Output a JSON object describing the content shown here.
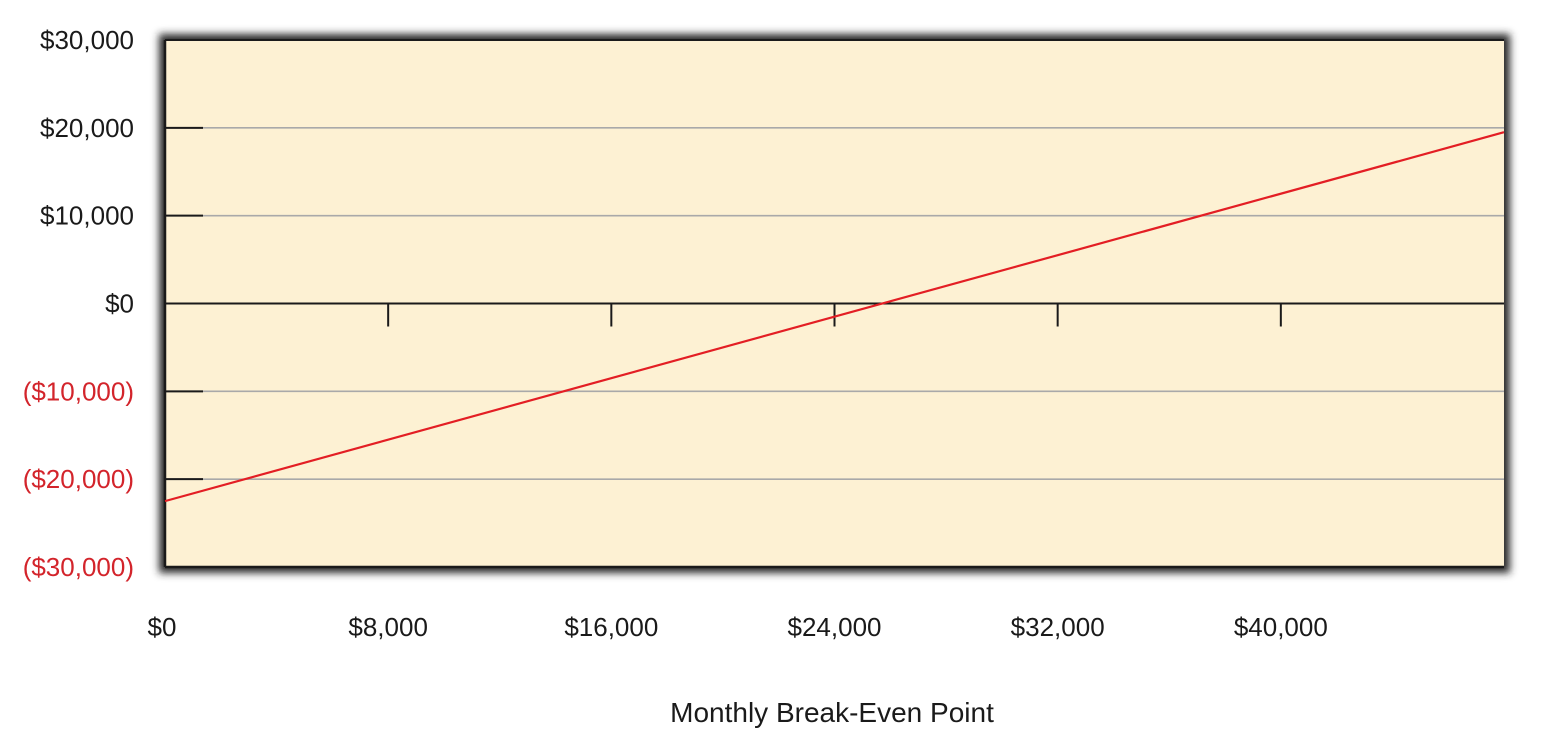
{
  "chart_data": {
    "type": "line",
    "title": "",
    "xlabel": "Monthly Break-Even Point",
    "ylabel": "",
    "xlim": [
      0,
      48000
    ],
    "ylim": [
      -30000,
      30000
    ],
    "x_ticks": [
      {
        "value": 0,
        "label": "$0"
      },
      {
        "value": 8000,
        "label": "$8,000"
      },
      {
        "value": 16000,
        "label": "$16,000"
      },
      {
        "value": 24000,
        "label": "$24,000"
      },
      {
        "value": 32000,
        "label": "$32,000"
      },
      {
        "value": 40000,
        "label": "$40,000"
      }
    ],
    "y_ticks": [
      {
        "value": 30000,
        "label": "$30,000",
        "negative": false
      },
      {
        "value": 20000,
        "label": "$20,000",
        "negative": false
      },
      {
        "value": 10000,
        "label": "$10,000",
        "negative": false
      },
      {
        "value": 0,
        "label": "$0",
        "negative": false
      },
      {
        "value": -10000,
        "label": "($10,000)",
        "negative": true
      },
      {
        "value": -20000,
        "label": "($20,000)",
        "negative": true
      },
      {
        "value": -30000,
        "label": "($30,000)",
        "negative": true
      }
    ],
    "series": [
      {
        "x": [
          0,
          48000
        ],
        "y": [
          -22500,
          19500
        ]
      }
    ],
    "grid": true,
    "legend": "none",
    "colors": {
      "plot_background": "#fdf1d3",
      "line": "#e31e24",
      "gridline": "#a9a9a9",
      "axis": "#1a1a1a",
      "negative_label": "#d3242b",
      "label": "#1a1a1a",
      "frame_shadow": "#2b2b2b"
    }
  }
}
